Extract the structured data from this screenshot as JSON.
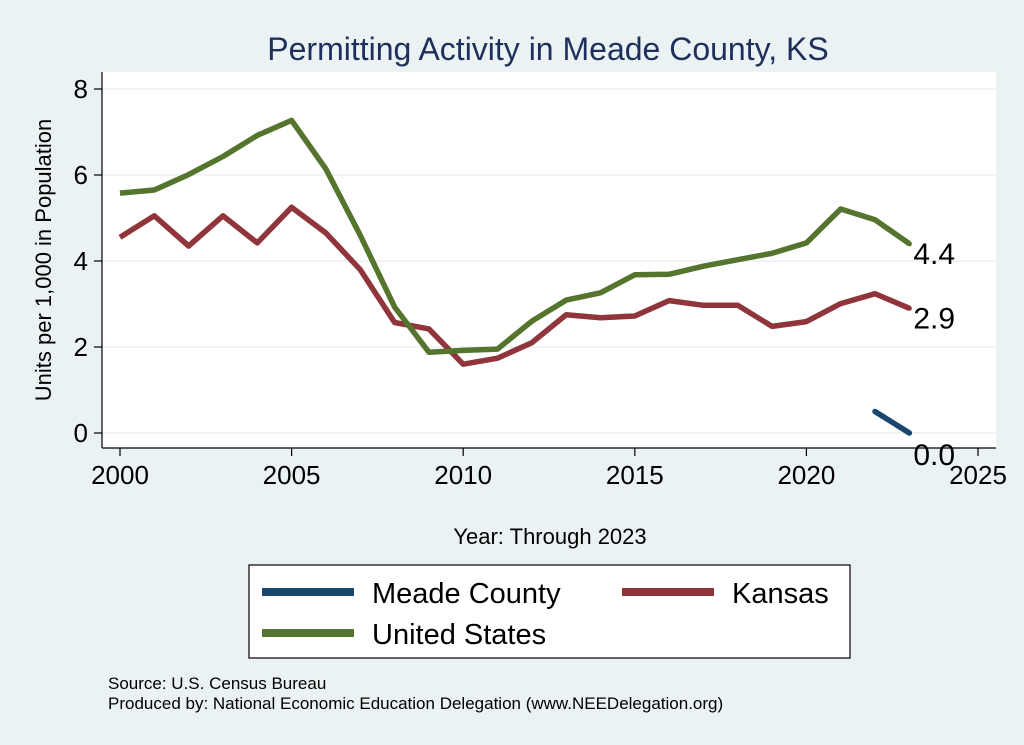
{
  "chart_data": {
    "type": "line",
    "title": "Permitting Activity in Meade County, KS",
    "xlabel": "Year: Through 2023",
    "ylabel": "Units per 1,000 in Population",
    "xlim": [
      2000,
      2025
    ],
    "ylim": [
      0,
      8
    ],
    "x_ticks": [
      2000,
      2005,
      2010,
      2015,
      2020,
      2025
    ],
    "y_ticks": [
      0,
      2,
      4,
      6,
      8
    ],
    "grid": true,
    "legend_position": "bottom",
    "series": [
      {
        "name": "Meade County",
        "color": "#1a476f",
        "x": [
          2022,
          2023
        ],
        "y": [
          0.5,
          0.0
        ],
        "end_label": "0.0"
      },
      {
        "name": "Kansas",
        "color": "#90353b",
        "x": [
          2000,
          2001,
          2002,
          2003,
          2004,
          2005,
          2006,
          2007,
          2008,
          2009,
          2010,
          2011,
          2012,
          2013,
          2014,
          2015,
          2016,
          2017,
          2018,
          2019,
          2020,
          2021,
          2022,
          2023
        ],
        "y": [
          4.55,
          5.05,
          4.35,
          5.05,
          4.42,
          5.25,
          4.65,
          3.8,
          2.57,
          2.42,
          1.6,
          1.74,
          2.1,
          2.75,
          2.68,
          2.72,
          3.08,
          2.97,
          2.97,
          2.48,
          2.59,
          3.01,
          3.24,
          2.9
        ],
        "end_label": "2.9"
      },
      {
        "name": "United States",
        "color": "#55752f",
        "x": [
          2000,
          2001,
          2002,
          2003,
          2004,
          2005,
          2006,
          2007,
          2008,
          2009,
          2010,
          2011,
          2012,
          2013,
          2014,
          2015,
          2016,
          2017,
          2018,
          2019,
          2020,
          2021,
          2022,
          2023
        ],
        "y": [
          5.58,
          5.65,
          6.01,
          6.43,
          6.92,
          7.27,
          6.14,
          4.6,
          2.93,
          1.88,
          1.92,
          1.95,
          2.6,
          3.09,
          3.26,
          3.68,
          3.69,
          3.88,
          4.03,
          4.18,
          4.42,
          5.21,
          4.96,
          4.4
        ],
        "end_label": "4.4"
      }
    ],
    "legend_order": [
      "Meade County",
      "Kansas",
      "United States"
    ],
    "notes": [
      "Source: U.S. Census Bureau",
      "Produced by: National Economic Education Delegation (www.NEEDelegation.org)"
    ]
  }
}
